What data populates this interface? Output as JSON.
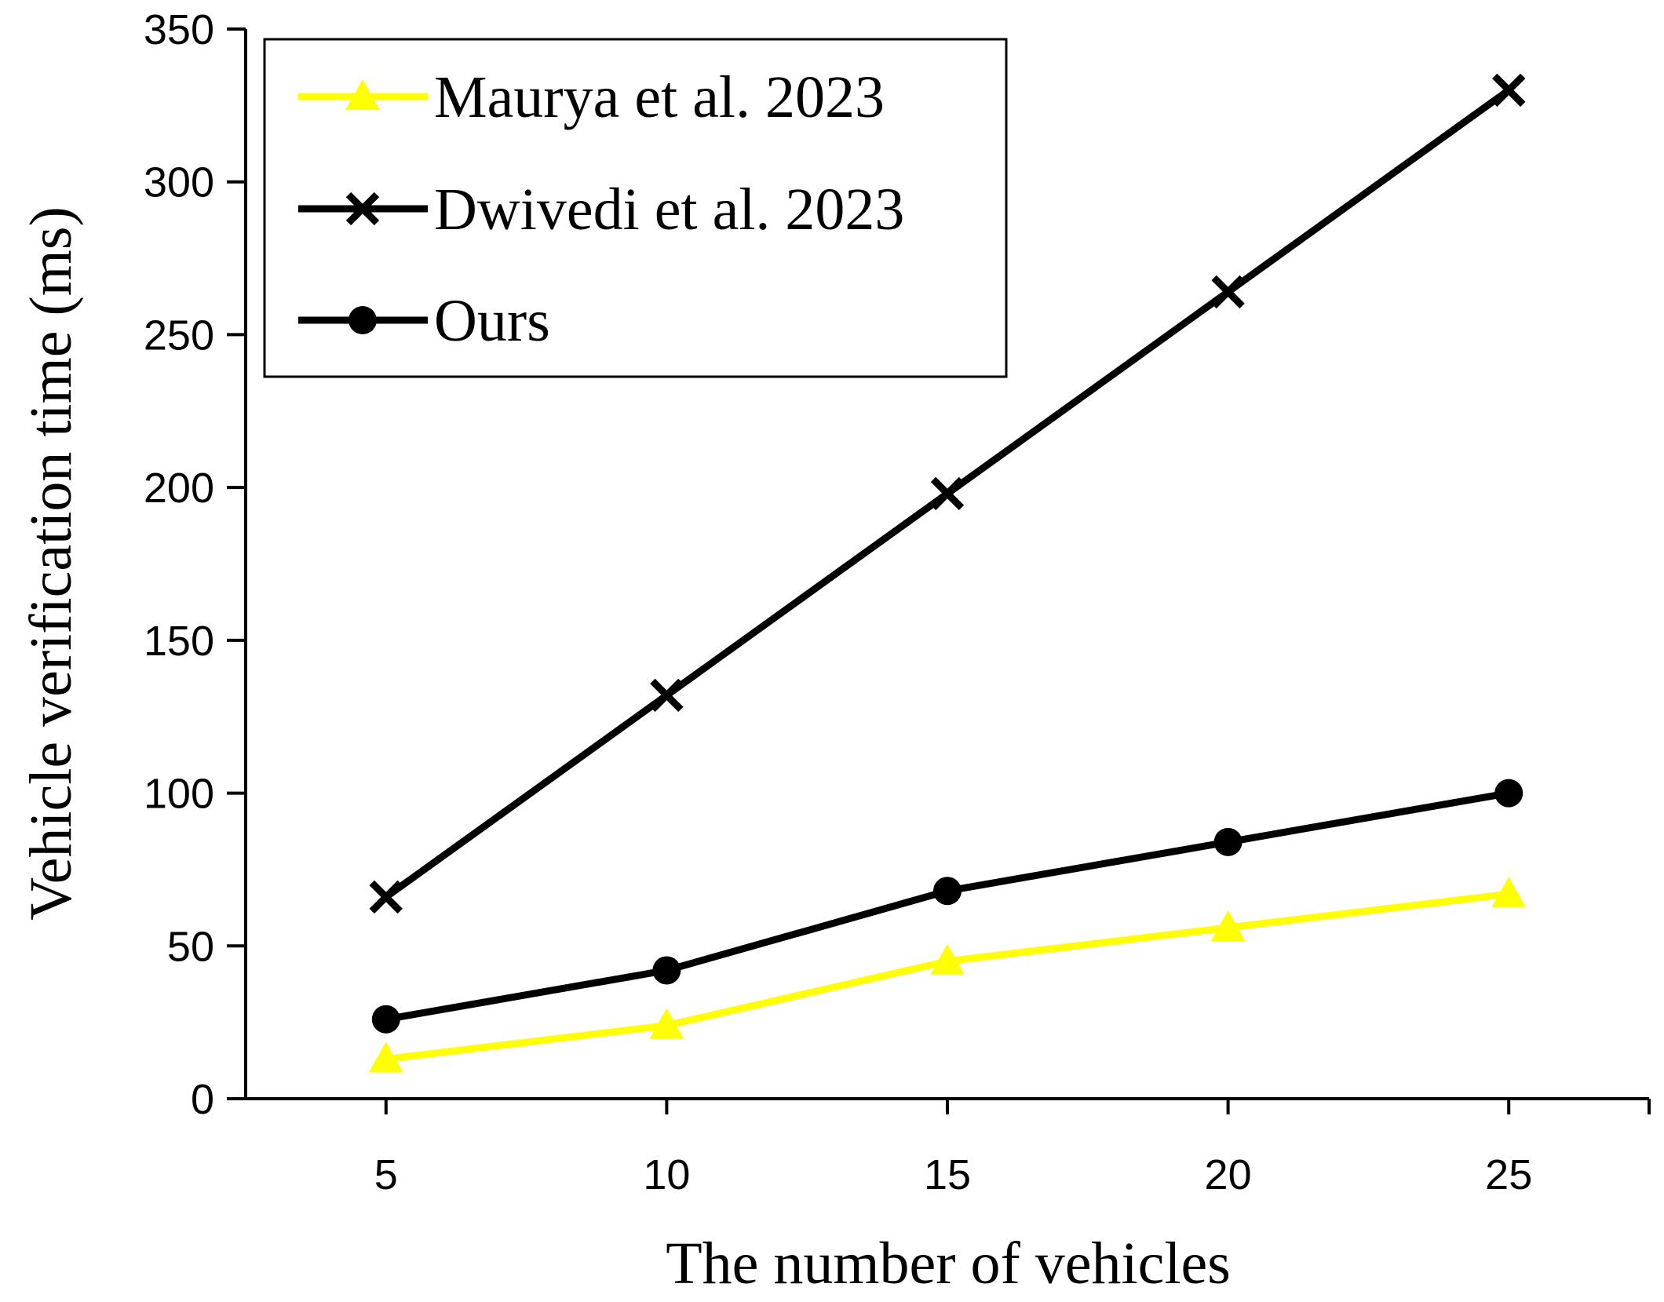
{
  "chart_data": {
    "type": "line",
    "title": "",
    "xlabel": "The number of vehicles",
    "ylabel": "Vehicle verification time (ms)",
    "x": [
      5,
      10,
      15,
      20,
      25
    ],
    "xlim": [
      2.5,
      27.5
    ],
    "ylim": [
      0,
      350
    ],
    "yticks": [
      0,
      50,
      100,
      150,
      200,
      250,
      300,
      350
    ],
    "grid": false,
    "legend_position": "top-left",
    "series": [
      {
        "name": "Maurya et al. 2023",
        "marker": "triangle",
        "color": "#ffff00",
        "values": [
          13,
          24,
          45,
          56,
          67
        ]
      },
      {
        "name": "Dwivedi et al. 2023",
        "marker": "x",
        "color": "#000000",
        "values": [
          66,
          132,
          198,
          264,
          330
        ]
      },
      {
        "name": "Ours",
        "marker": "circle",
        "color": "#000000",
        "values": [
          26,
          42,
          68,
          84,
          100
        ]
      }
    ]
  }
}
